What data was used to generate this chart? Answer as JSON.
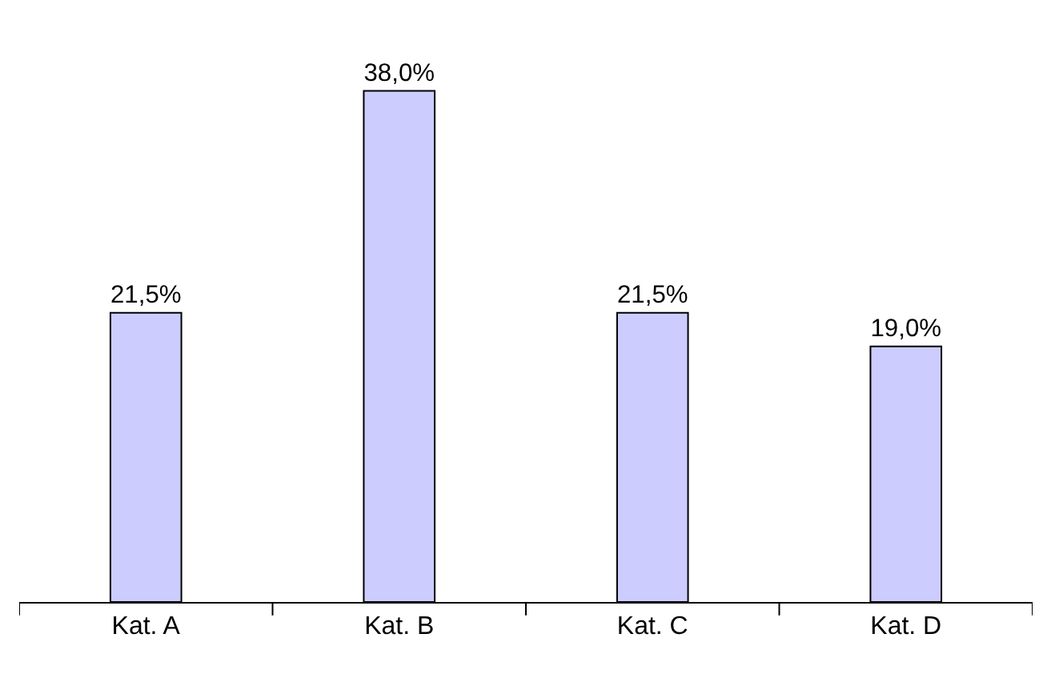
{
  "chart_data": {
    "type": "bar",
    "categories": [
      "Kat. A",
      "Kat. B",
      "Kat. C",
      "Kat. D"
    ],
    "values": [
      21.5,
      38.0,
      21.5,
      19.0
    ],
    "value_labels": [
      "21,5%",
      "38,0%",
      "21,5%",
      "19,0%"
    ],
    "color": "#ccccff",
    "grid": false,
    "legend": false
  }
}
